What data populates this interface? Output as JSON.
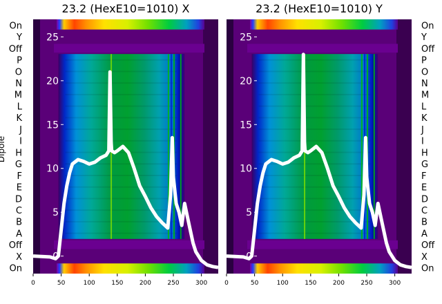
{
  "chart_data": [
    {
      "type": "heatmap",
      "title": "23.2 (HexE10=1010) X",
      "ylabel": "Dipole",
      "row_labels": [
        "On",
        "Y",
        "Off",
        "P",
        "O",
        "N",
        "M",
        "L",
        "K",
        "J",
        "I",
        "H",
        "G",
        "F",
        "E",
        "D",
        "C",
        "B",
        "A",
        "Off",
        "X",
        "On"
      ],
      "x_ticks": [
        0,
        50,
        100,
        150,
        200,
        250,
        300
      ],
      "xlim": [
        0,
        330
      ],
      "overlay_yticks": [
        0,
        5,
        10,
        15,
        20,
        25
      ],
      "overlay_ylim": [
        -2,
        27
      ],
      "colormap": "nipy_spectral",
      "active_x_range": [
        45,
        270
      ],
      "overlay_series": {
        "name": "",
        "color": "#ffffff",
        "x": [
          0,
          30,
          40,
          45,
          50,
          55,
          60,
          65,
          70,
          80,
          90,
          100,
          110,
          120,
          130,
          135,
          137,
          139,
          140,
          145,
          150,
          160,
          170,
          180,
          190,
          200,
          210,
          220,
          230,
          240,
          245,
          248,
          250,
          255,
          260,
          265,
          270,
          275,
          280,
          285,
          290,
          300,
          310,
          320,
          330
        ],
        "y": [
          0,
          -0.1,
          -0.3,
          0,
          3,
          6,
          8,
          9.5,
          10.5,
          11,
          10.8,
          10.5,
          10.7,
          11.2,
          11.5,
          12,
          21,
          13,
          12,
          11.8,
          12,
          12.5,
          11.8,
          10,
          8,
          6.8,
          5.5,
          4.5,
          3.8,
          3.2,
          7,
          13.5,
          9,
          6,
          5,
          3.5,
          6,
          4.5,
          3,
          1.5,
          0.5,
          -0.5,
          -1,
          -1.2,
          -1.3
        ]
      }
    },
    {
      "type": "heatmap",
      "title": "23.2 (HexE10=1010) Y",
      "row_labels": [
        "On",
        "Y",
        "Off",
        "P",
        "O",
        "N",
        "M",
        "L",
        "K",
        "J",
        "I",
        "H",
        "G",
        "F",
        "E",
        "D",
        "C",
        "B",
        "A",
        "Off",
        "X",
        "On"
      ],
      "x_ticks": [
        0,
        50,
        100,
        150,
        200,
        250,
        300
      ],
      "xlim": [
        0,
        330
      ],
      "overlay_yticks": [
        0,
        5,
        10,
        15,
        20,
        25
      ],
      "overlay_ylim": [
        -2,
        27
      ],
      "colormap": "nipy_spectral",
      "active_x_range": [
        45,
        270
      ],
      "overlay_series": {
        "name": "",
        "color": "#ffffff",
        "x": [
          0,
          30,
          40,
          45,
          50,
          55,
          60,
          65,
          70,
          80,
          90,
          100,
          110,
          120,
          130,
          135,
          137,
          139,
          140,
          145,
          150,
          160,
          170,
          180,
          190,
          200,
          210,
          220,
          230,
          240,
          245,
          248,
          250,
          255,
          260,
          265,
          270,
          275,
          280,
          285,
          290,
          300,
          310,
          320,
          330
        ],
        "y": [
          0,
          -0.1,
          -0.3,
          0,
          3,
          6,
          8,
          9.5,
          10.5,
          11,
          10.8,
          10.5,
          10.7,
          11.2,
          11.5,
          12,
          23,
          13,
          12,
          11.8,
          12,
          12.5,
          11.8,
          10,
          8,
          6.8,
          5.5,
          4.5,
          3.8,
          3.2,
          7,
          13.5,
          9,
          6,
          5,
          3.5,
          6,
          4.5,
          3,
          1.5,
          0.5,
          -0.5,
          -1,
          -1.2,
          -1.3
        ]
      }
    }
  ]
}
